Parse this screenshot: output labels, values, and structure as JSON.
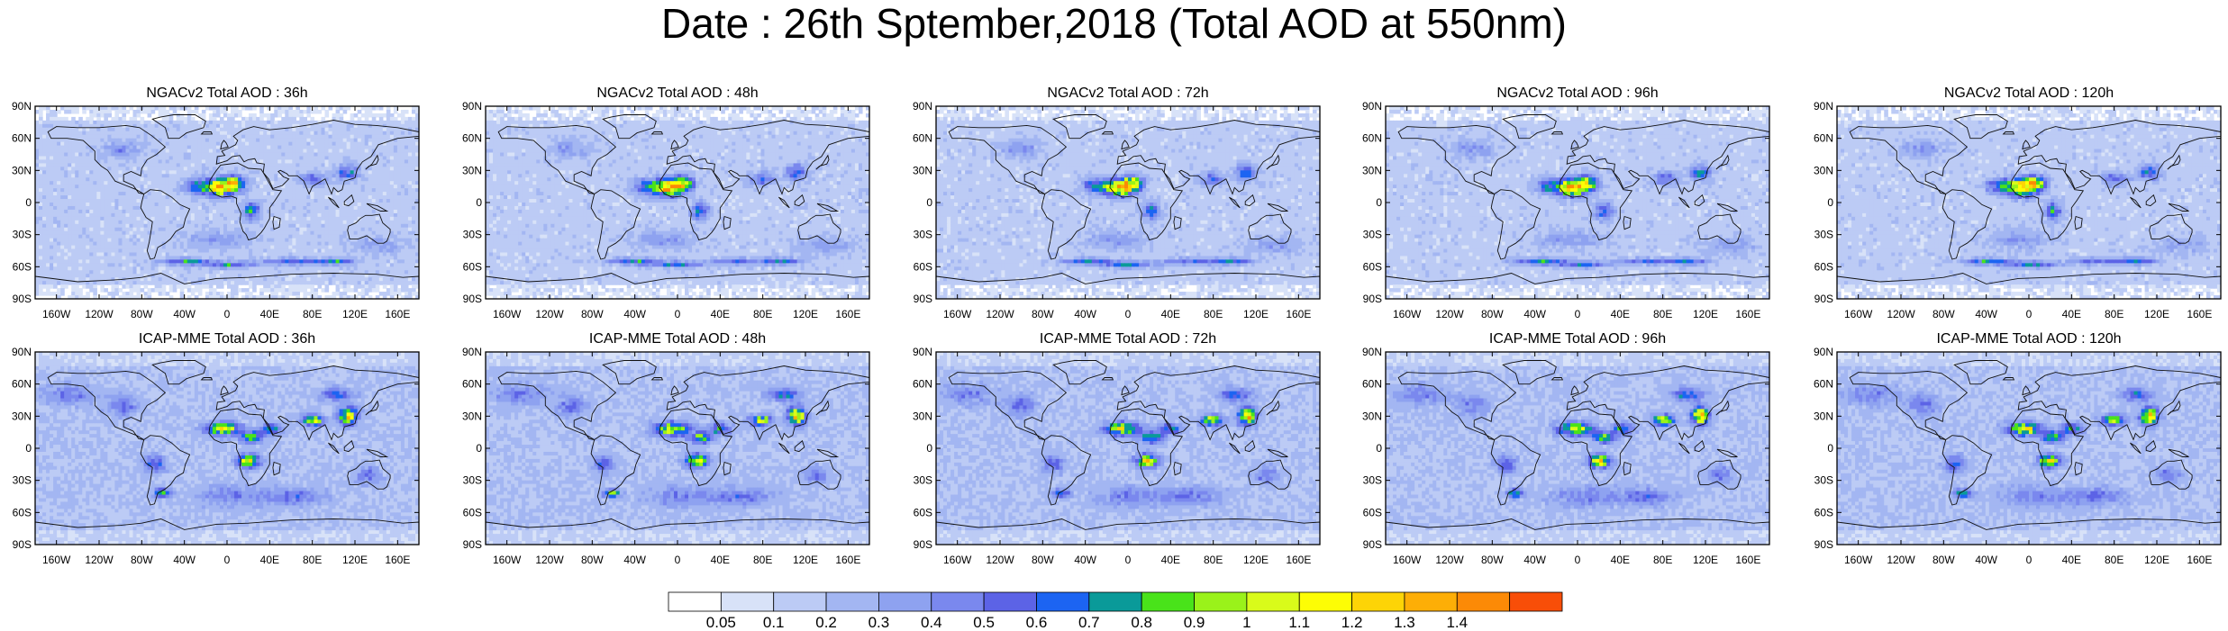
{
  "page_title": "Date : 26th Sptember,2018 (Total AOD at 550nm)",
  "panels": [
    {
      "title": "NGACv2 Total AOD : 36h",
      "row": 0,
      "col": 0,
      "model": "ngac",
      "seed": 11
    },
    {
      "title": "NGACv2 Total AOD : 48h",
      "row": 0,
      "col": 1,
      "model": "ngac",
      "seed": 23
    },
    {
      "title": "NGACv2 Total AOD : 72h",
      "row": 0,
      "col": 2,
      "model": "ngac",
      "seed": 37
    },
    {
      "title": "NGACv2 Total AOD : 96h",
      "row": 0,
      "col": 3,
      "model": "ngac",
      "seed": 41
    },
    {
      "title": "NGACv2 Total AOD : 120h",
      "row": 0,
      "col": 4,
      "model": "ngac",
      "seed": 53
    },
    {
      "title": "ICAP-MME Total AOD : 36h",
      "row": 1,
      "col": 0,
      "model": "icap",
      "seed": 61
    },
    {
      "title": "ICAP-MME Total AOD : 48h",
      "row": 1,
      "col": 1,
      "model": "icap",
      "seed": 73
    },
    {
      "title": "ICAP-MME Total AOD : 72h",
      "row": 1,
      "col": 2,
      "model": "icap",
      "seed": 87
    },
    {
      "title": "ICAP-MME Total AOD : 96h",
      "row": 1,
      "col": 3,
      "model": "icap",
      "seed": 97
    },
    {
      "title": "ICAP-MME Total AOD : 120h",
      "row": 1,
      "col": 4,
      "model": "icap",
      "seed": 109
    }
  ],
  "lat_ticks": [
    "90N",
    "60N",
    "30N",
    "0",
    "30S",
    "60S",
    "90S"
  ],
  "lon_ticks": [
    "160W",
    "120W",
    "80W",
    "40W",
    "0",
    "40E",
    "80E",
    "120E",
    "160E"
  ],
  "lon_tick_values": [
    -160,
    -120,
    -80,
    -40,
    0,
    40,
    80,
    120,
    160
  ],
  "colorbar": {
    "labels": [
      "0.05",
      "0.1",
      "0.2",
      "0.3",
      "0.4",
      "0.5",
      "0.6",
      "0.7",
      "0.8",
      "0.9",
      "1",
      "1.1",
      "1.2",
      "1.3",
      "1.4"
    ],
    "colors": [
      "#ffffff",
      "#d8e2f8",
      "#bccbf5",
      "#a3b6f2",
      "#8ea2f0",
      "#7a88ee",
      "#5c63e6",
      "#1c64f2",
      "#0a9a99",
      "#49e31a",
      "#9af21a",
      "#d9fb1a",
      "#fdfd05",
      "#fdd406",
      "#fdae06",
      "#fc8a06",
      "#f84e08"
    ]
  }
}
